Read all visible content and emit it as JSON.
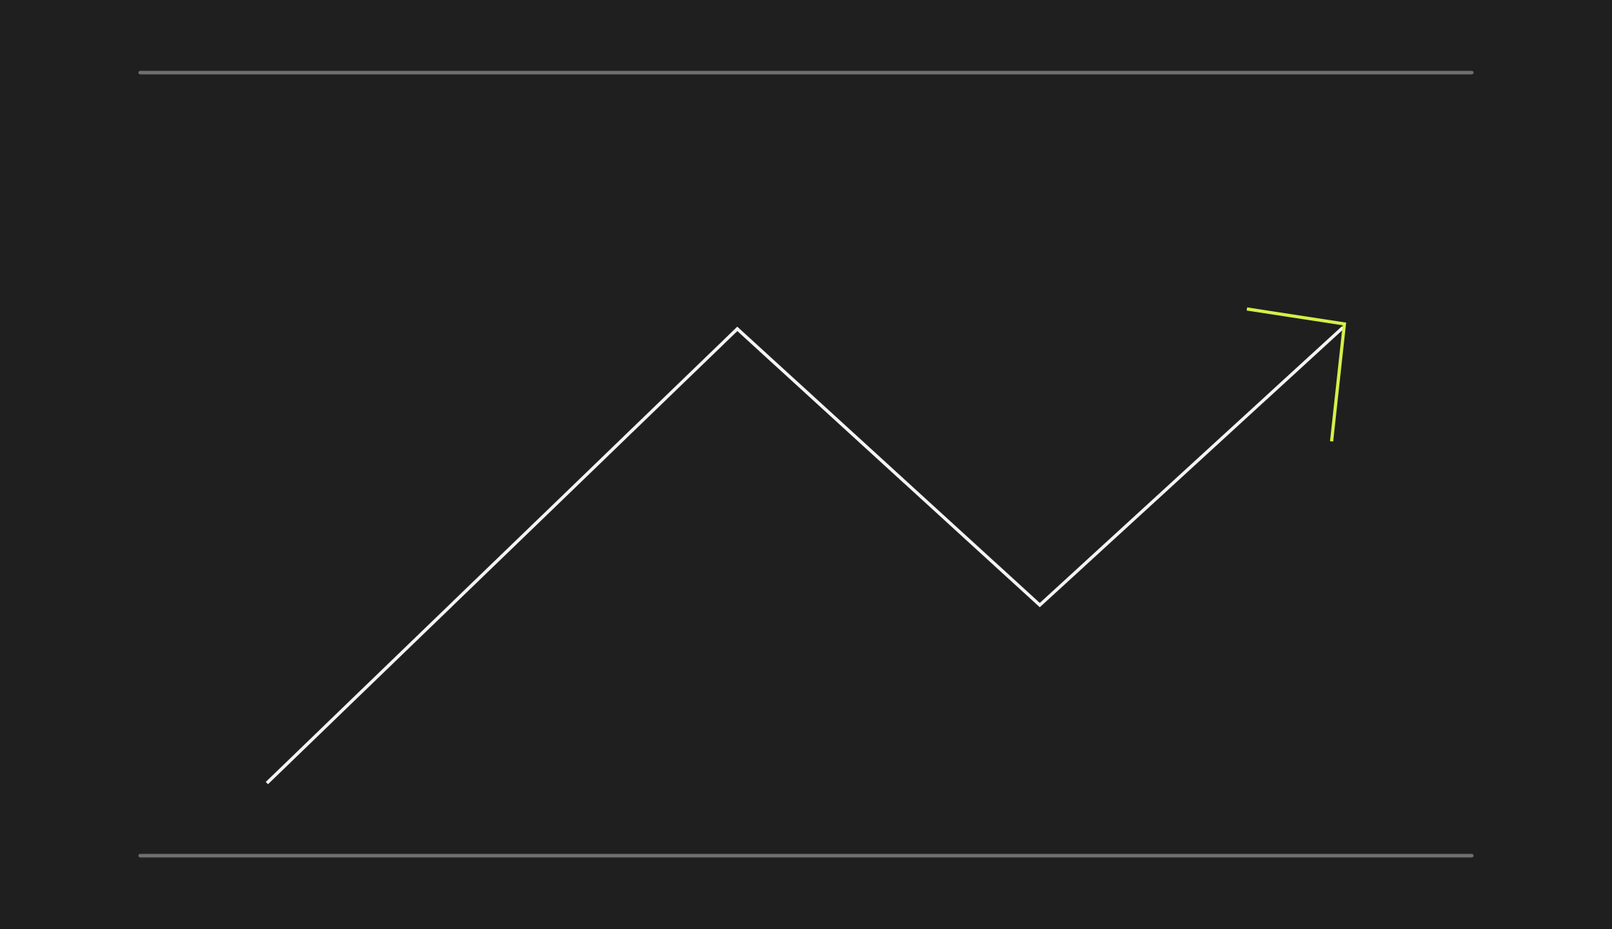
{
  "colors": {
    "background": "#1f1f1f",
    "rule": "#6f6f6f",
    "line": "#f4f4f4",
    "arrowhead": "#d4f04a"
  },
  "graphic": {
    "icon": "trend-up-arrow-icon"
  }
}
